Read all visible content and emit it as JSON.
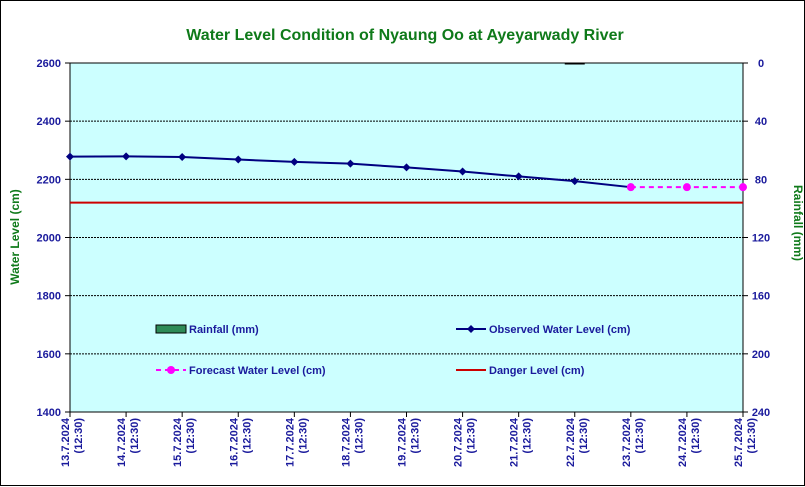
{
  "chart_data": {
    "type": "line",
    "title": "Water Level Condition of Nyaung Oo at Ayeyarwady River",
    "ylabel": "Water Level (cm)",
    "y2label": "Rainfall (mm)",
    "ylim": [
      1400,
      2600
    ],
    "y2lim": [
      0,
      240
    ],
    "y2_inverted": true,
    "yticks": [
      1400,
      1600,
      1800,
      2000,
      2200,
      2400,
      2600
    ],
    "y2ticks": [
      0,
      40,
      80,
      120,
      160,
      200,
      240
    ],
    "grid": true,
    "x": [
      {
        "date": "13.7.2024",
        "time": "(12:30)"
      },
      {
        "date": "14.7.2024",
        "time": "(12:30)"
      },
      {
        "date": "15.7.2024",
        "time": "(12:30)"
      },
      {
        "date": "16.7.2024",
        "time": "(12:30)"
      },
      {
        "date": "17.7.2024",
        "time": "(12:30)"
      },
      {
        "date": "18.7.2024",
        "time": "(12:30)"
      },
      {
        "date": "19.7.2024",
        "time": "(12:30)"
      },
      {
        "date": "20.7.2024",
        "time": "(12:30)"
      },
      {
        "date": "21.7.2024",
        "time": "(12:30)"
      },
      {
        "date": "22.7.2024",
        "time": "(12:30)"
      },
      {
        "date": "23.7.2024",
        "time": "(12:30)"
      },
      {
        "date": "24.7.2024",
        "time": "(12:30)"
      },
      {
        "date": "25.7.2024",
        "time": "(12:30)"
      }
    ],
    "series": [
      {
        "name": "Rainfall (mm)",
        "kind": "bar",
        "axis": "right",
        "color": "#2e8b57",
        "values": [
          null,
          null,
          null,
          null,
          null,
          null,
          null,
          null,
          null,
          0,
          null,
          null,
          null
        ]
      },
      {
        "name": "Observed Water Level (cm)",
        "kind": "line",
        "axis": "left",
        "color": "#000080",
        "marker": "diamond",
        "values": [
          2278,
          2279,
          2277,
          2268,
          2260,
          2254,
          2241,
          2227,
          2210,
          2194,
          2173,
          null,
          null
        ]
      },
      {
        "name": "Forecast Water Level (cm)",
        "kind": "line",
        "axis": "left",
        "color": "#ff00ff",
        "marker": "circle",
        "dashed": true,
        "values": [
          null,
          null,
          null,
          null,
          null,
          null,
          null,
          null,
          null,
          null,
          2173,
          2173,
          2173
        ]
      },
      {
        "name": "Danger Level (cm)",
        "kind": "hline",
        "axis": "left",
        "color": "#cc0000",
        "value": 2120
      }
    ],
    "legend": [
      {
        "label": "Rainfall (mm)",
        "series": 0
      },
      {
        "label": "Observed Water Level (cm)",
        "series": 1
      },
      {
        "label": "Forecast Water Level (cm)",
        "series": 2
      },
      {
        "label": "Danger Level (cm)",
        "series": 3
      }
    ]
  }
}
